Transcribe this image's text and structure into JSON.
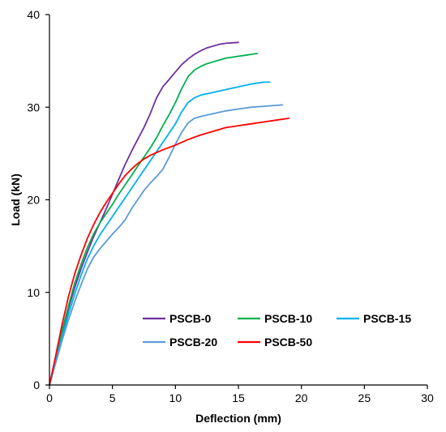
{
  "chart_data": {
    "type": "line",
    "xlabel": "Deflection (mm)",
    "ylabel": "Load (kN)",
    "xlim": [
      0,
      30
    ],
    "ylim": [
      0,
      40
    ],
    "xticks": [
      0,
      5,
      10,
      15,
      20,
      25,
      30
    ],
    "yticks": [
      0,
      10,
      20,
      30,
      40
    ],
    "grid": false,
    "legend": "bottom-right, inside plot, 3 columns",
    "series": [
      {
        "name": "PSCB-0",
        "color": "#7030a0",
        "x": [
          0,
          0.5,
          1,
          1.5,
          2,
          2.5,
          3,
          3.5,
          4,
          4.5,
          5,
          5.5,
          6,
          6.5,
          7,
          7.5,
          8,
          8.5,
          9,
          9.5,
          10,
          10.5,
          11,
          11.5,
          12,
          12.5,
          13,
          13.5,
          14,
          14.5,
          15
        ],
        "y": [
          0,
          2.8,
          5.6,
          8.2,
          10.5,
          12.5,
          14.3,
          16.0,
          17.5,
          19.0,
          20.6,
          22.2,
          23.8,
          25.2,
          26.5,
          27.8,
          29.3,
          31.0,
          32.2,
          33.0,
          33.8,
          34.6,
          35.2,
          35.7,
          36.1,
          36.4,
          36.6,
          36.8,
          36.9,
          36.95,
          37.0
        ]
      },
      {
        "name": "PSCB-10",
        "color": "#00b050",
        "x": [
          0,
          0.5,
          1,
          1.5,
          2,
          2.5,
          3,
          3.5,
          4,
          4.5,
          5,
          5.5,
          6,
          6.5,
          7,
          7.5,
          8,
          8.5,
          9,
          9.5,
          10,
          10.5,
          11,
          11.5,
          12,
          12.5,
          13,
          13.5,
          14,
          14.5,
          15,
          15.5,
          16,
          16.5
        ],
        "y": [
          0,
          2.9,
          5.8,
          8.5,
          11.0,
          13.0,
          14.8,
          16.3,
          17.5,
          18.5,
          19.5,
          20.6,
          21.6,
          22.6,
          23.6,
          24.6,
          25.6,
          26.7,
          28.0,
          29.2,
          30.5,
          32.0,
          33.3,
          34.0,
          34.4,
          34.7,
          34.9,
          35.1,
          35.3,
          35.4,
          35.5,
          35.6,
          35.7,
          35.8
        ]
      },
      {
        "name": "PSCB-15",
        "color": "#00b0f0",
        "x": [
          0,
          0.5,
          1,
          1.5,
          2,
          2.5,
          3,
          3.5,
          4,
          4.5,
          5,
          5.5,
          6,
          6.5,
          7,
          7.5,
          8,
          8.5,
          9,
          9.5,
          10,
          10.5,
          11,
          11.5,
          12,
          13,
          14,
          15,
          16,
          17,
          17.5
        ],
        "y": [
          0,
          2.6,
          5.2,
          7.6,
          9.8,
          11.8,
          13.6,
          15.0,
          16.2,
          17.2,
          18.2,
          19.2,
          20.2,
          21.2,
          22.2,
          23.2,
          24.2,
          25.2,
          26.2,
          27.2,
          28.2,
          29.5,
          30.5,
          31.0,
          31.3,
          31.6,
          31.9,
          32.2,
          32.5,
          32.7,
          32.7
        ]
      },
      {
        "name": "PSCB-20",
        "color": "#5b9bd5",
        "x": [
          0,
          0.5,
          1,
          1.5,
          2,
          2.5,
          3,
          3.5,
          4,
          4.5,
          5,
          5.5,
          6,
          6.5,
          7,
          7.5,
          8,
          8.5,
          9,
          9.5,
          10,
          10.5,
          11,
          11.5,
          12,
          13,
          14,
          15,
          16,
          17,
          18,
          18.5
        ],
        "y": [
          0,
          2.4,
          4.8,
          7.0,
          9.0,
          10.8,
          12.5,
          13.8,
          14.7,
          15.5,
          16.3,
          17.0,
          17.8,
          19.0,
          20.0,
          21.0,
          21.8,
          22.5,
          23.3,
          24.6,
          26.0,
          27.3,
          28.3,
          28.8,
          29.0,
          29.3,
          29.6,
          29.8,
          30.0,
          30.1,
          30.2,
          30.25
        ]
      },
      {
        "name": "PSCB-50",
        "color": "#ff0000",
        "x": [
          0,
          0.5,
          1,
          1.5,
          2,
          2.5,
          3,
          3.5,
          4,
          4.5,
          5,
          5.5,
          6,
          6.5,
          7,
          7.5,
          8,
          9,
          10,
          11,
          12,
          13,
          14,
          15,
          16,
          17,
          18,
          19
        ],
        "y": [
          0,
          3.2,
          6.5,
          9.5,
          12.0,
          14.0,
          15.8,
          17.3,
          18.6,
          19.7,
          20.7,
          21.7,
          22.6,
          23.3,
          23.9,
          24.4,
          24.8,
          25.4,
          25.9,
          26.5,
          27.0,
          27.4,
          27.8,
          28.0,
          28.2,
          28.4,
          28.6,
          28.8
        ]
      }
    ]
  }
}
